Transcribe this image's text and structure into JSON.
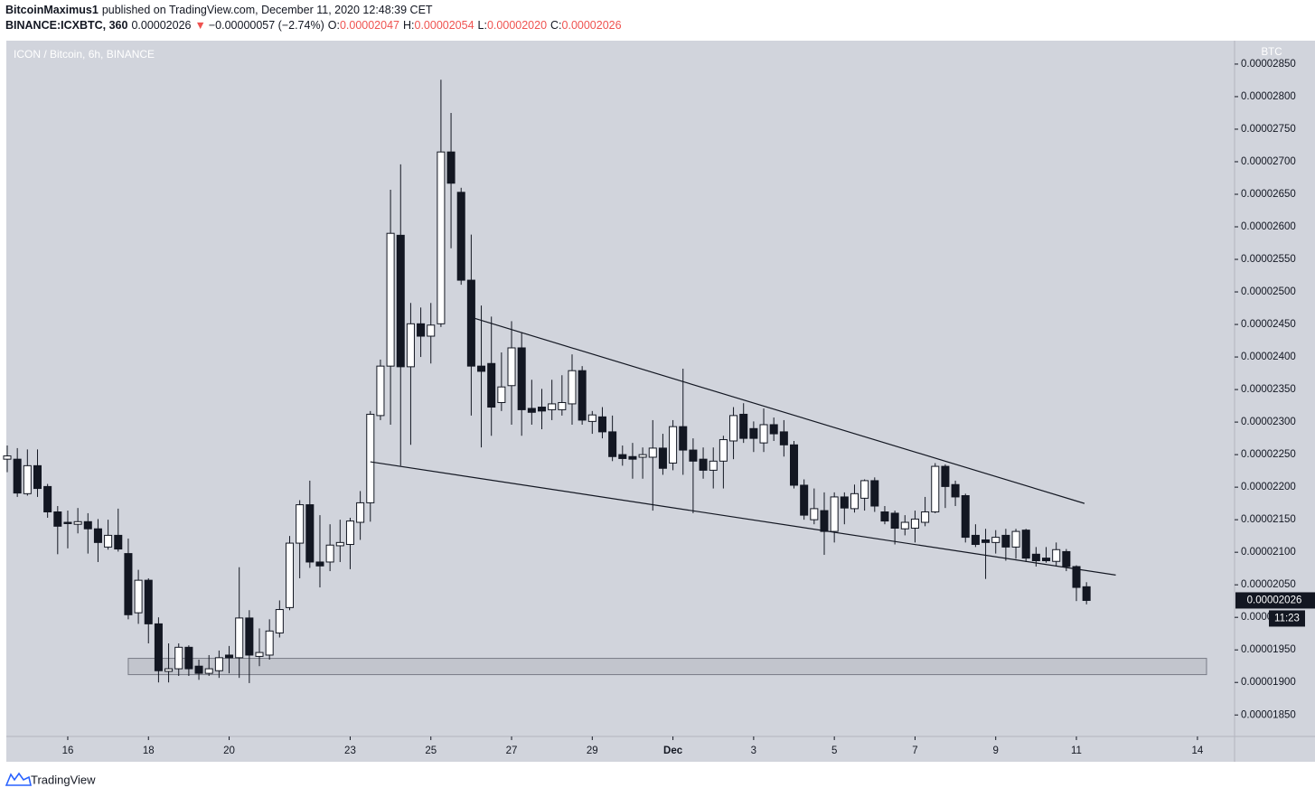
{
  "header": {
    "author": "BitcoinMaximus1",
    "published": "published on TradingView.com, December 11, 2020 12:48:39 CET",
    "symbol": "BINANCE:ICXBTC, 360",
    "price": "0.00002026",
    "arrow": "▼",
    "change": "−0.00000057 (−2.74%)",
    "ohlc": [
      {
        "label": "O:",
        "value": "0.00002047"
      },
      {
        "label": "H:",
        "value": "0.00002054"
      },
      {
        "label": "L:",
        "value": "0.00002020"
      },
      {
        "label": "C:",
        "value": "0.00002026"
      }
    ]
  },
  "footer": {
    "brand": "TradingView"
  },
  "chart_data": {
    "type": "candlestick",
    "title": "ICON / Bitcoin, 6h, BINANCE",
    "y_unit": "BTC",
    "up_color": "#ffffff",
    "down_color": "#131722",
    "grid": false,
    "candles": {
      "open": [
        2.243e-05,
        2.243e-05,
        2.19e-05,
        2.233e-05,
        2.201e-05,
        2.162e-05,
        2.146e-05,
        2.143e-05,
        2.147e-05,
        2.136e-05,
        2.108e-05,
        2.126e-05,
        2.098e-05,
        2.007e-05,
        2.057e-05,
        1.99e-05,
        1.917e-05,
        1.921e-05,
        1.954e-05,
        1.925e-05,
        1.914e-05,
        1.918e-05,
        1.942e-05,
        1.938e-05,
        1.999e-05,
        1.94e-05,
        1.942e-05,
        1.976e-05,
        2.015e-05,
        2.114e-05,
        2.173e-05,
        2.085e-05,
        2.085e-05,
        2.11e-05,
        2.112e-05,
        2.146e-05,
        2.176e-05,
        2.31e-05,
        2.386e-05,
        2.587e-05,
        2.385e-05,
        2.451e-05,
        2.432e-05,
        2.451e-05,
        2.715e-05,
        2.653e-05,
        2.518e-05,
        2.386e-05,
        2.39e-05,
        2.33e-05,
        2.356e-05,
        2.414e-05,
        2.321e-05,
        2.323e-05,
        2.319e-05,
        2.319e-05,
        2.328e-05,
        2.379e-05,
        2.301e-05,
        2.308e-05,
        2.285e-05,
        2.25e-05,
        2.247e-05,
        2.246e-05,
        2.246e-05,
        2.26e-05,
        2.237e-05,
        2.293e-05,
        2.257e-05,
        2.243e-05,
        2.226e-05,
        2.24e-05,
        2.271e-05,
        2.312e-05,
        2.29e-05,
        2.268e-05,
        2.296e-05,
        2.285e-05,
        2.265e-05,
        2.203e-05,
        2.15e-05,
        2.164e-05,
        2.132e-05,
        2.185e-05,
        2.167e-05,
        2.183e-05,
        2.21e-05,
        2.162e-05,
        2.16e-05,
        2.136e-05,
        2.137e-05,
        2.146e-05,
        2.162e-05,
        2.232e-05,
        2.204e-05,
        2.187e-05,
        2.126e-05,
        2.119e-05,
        2.115e-05,
        2.126e-05,
        2.108e-05,
        2.134e-05,
        2.097e-05,
        2.091e-05,
        2.086e-05,
        2.101e-05,
        2.078e-05,
        2.047e-05
      ],
      "high": [
        2.264e-05,
        2.26e-05,
        2.258e-05,
        2.258e-05,
        2.205e-05,
        2.171e-05,
        2.164e-05,
        2.168e-05,
        2.16e-05,
        2.151e-05,
        2.15e-05,
        2.167e-05,
        2.121e-05,
        2.073e-05,
        2.06e-05,
        2e-05,
        1.96e-05,
        1.96e-05,
        1.957e-05,
        1.935e-05,
        1.942e-05,
        1.949e-05,
        1.956e-05,
        2.077e-05,
        2.011e-05,
        1.983e-05,
        1.997e-05,
        2.026e-05,
        2.125e-05,
        2.18e-05,
        2.21e-05,
        2.157e-05,
        2.143e-05,
        2.15e-05,
        2.153e-05,
        2.194e-05,
        2.317e-05,
        2.396e-05,
        2.657e-05,
        2.696e-05,
        2.483e-05,
        2.476e-05,
        2.483e-05,
        2.826e-05,
        2.775e-05,
        2.66e-05,
        2.588e-05,
        2.479e-05,
        2.462e-05,
        2.407e-05,
        2.455e-05,
        2.437e-05,
        2.365e-05,
        2.351e-05,
        2.365e-05,
        2.372e-05,
        2.404e-05,
        2.386e-05,
        2.317e-05,
        2.323e-05,
        2.31e-05,
        2.264e-05,
        2.268e-05,
        2.261e-05,
        2.303e-05,
        2.282e-05,
        2.303e-05,
        2.382e-05,
        2.275e-05,
        2.261e-05,
        2.261e-05,
        2.279e-05,
        2.323e-05,
        2.329e-05,
        2.301e-05,
        2.321e-05,
        2.307e-05,
        2.303e-05,
        2.271e-05,
        2.212e-05,
        2.198e-05,
        2.192e-05,
        2.192e-05,
        2.192e-05,
        2.204e-05,
        2.212e-05,
        2.215e-05,
        2.171e-05,
        2.164e-05,
        2.157e-05,
        2.164e-05,
        2.185e-05,
        2.237e-05,
        2.235e-05,
        2.21e-05,
        2.19e-05,
        2.143e-05,
        2.136e-05,
        2.134e-05,
        2.136e-05,
        2.136e-05,
        2.136e-05,
        2.108e-05,
        2.108e-05,
        2.115e-05,
        2.105e-05,
        2.08e-05,
        2.054e-05
      ],
      "low": [
        2.223e-05,
        2.185e-05,
        2.187e-05,
        2.185e-05,
        2.153e-05,
        2.097e-05,
        2.106e-05,
        2.129e-05,
        2.098e-05,
        2.085e-05,
        2.104e-05,
        2.101e-05,
        1.997e-05,
        1.99e-05,
        1.96e-05,
        1.9e-05,
        1.9e-05,
        1.91e-05,
        1.91e-05,
        1.904e-05,
        1.91e-05,
        1.907e-05,
        1.914e-05,
        1.907e-05,
        1.899e-05,
        1.925e-05,
        1.935e-05,
        1.969e-05,
        2.011e-05,
        2.06e-05,
        2.076e-05,
        2.046e-05,
        2.071e-05,
        2.085e-05,
        2.074e-05,
        2.119e-05,
        2.147e-05,
        2.303e-05,
        2.296e-05,
        2.233e-05,
        2.265e-05,
        2.4e-05,
        2.39e-05,
        2.446e-05,
        2.567e-05,
        2.511e-05,
        2.31e-05,
        2.261e-05,
        2.279e-05,
        2.317e-05,
        2.296e-05,
        2.279e-05,
        2.296e-05,
        2.289e-05,
        2.303e-05,
        2.31e-05,
        2.296e-05,
        2.296e-05,
        2.282e-05,
        2.275e-05,
        2.24e-05,
        2.233e-05,
        2.213e-05,
        2.213e-05,
        2.164e-05,
        2.219e-05,
        2.226e-05,
        2.219e-05,
        2.16e-05,
        2.213e-05,
        2.198e-05,
        2.198e-05,
        2.243e-05,
        2.268e-05,
        2.254e-05,
        2.254e-05,
        2.271e-05,
        2.247e-05,
        2.198e-05,
        2.15e-05,
        2.143e-05,
        2.096e-05,
        2.115e-05,
        2.143e-05,
        2.161e-05,
        2.164e-05,
        2.162e-05,
        2.143e-05,
        2.112e-05,
        2.126e-05,
        2.115e-05,
        2.14e-05,
        2.16e-05,
        2.168e-05,
        2.171e-05,
        2.115e-05,
        2.108e-05,
        2.059e-05,
        2.098e-05,
        2.087e-05,
        2.09e-05,
        2.085e-05,
        2.078e-05,
        2.084e-05,
        2.078e-05,
        2.071e-05,
        2.025e-05,
        2.02e-05
      ],
      "close": [
        2.248e-05,
        2.191e-05,
        2.233e-05,
        2.198e-05,
        2.162e-05,
        2.14e-05,
        2.144e-05,
        2.147e-05,
        2.136e-05,
        2.115e-05,
        2.126e-05,
        2.105e-05,
        2.004e-05,
        2.057e-05,
        1.99e-05,
        1.918e-05,
        1.921e-05,
        1.954e-05,
        1.921e-05,
        1.914e-05,
        1.921e-05,
        1.938e-05,
        1.938e-05,
        1.999e-05,
        1.942e-05,
        1.946e-05,
        1.979e-05,
        2.012e-05,
        2.114e-05,
        2.173e-05,
        2.085e-05,
        2.079e-05,
        2.111e-05,
        2.115e-05,
        2.148e-05,
        2.176e-05,
        2.312e-05,
        2.386e-05,
        2.59e-05,
        2.385e-05,
        2.451e-05,
        2.432e-05,
        2.449e-05,
        2.715e-05,
        2.667e-05,
        2.518e-05,
        2.386e-05,
        2.378e-05,
        2.323e-05,
        2.354e-05,
        2.414e-05,
        2.319e-05,
        2.315e-05,
        2.317e-05,
        2.328e-05,
        2.33e-05,
        2.379e-05,
        2.303e-05,
        2.311e-05,
        2.285e-05,
        2.247e-05,
        2.244e-05,
        2.243e-05,
        2.25e-05,
        2.26e-05,
        2.229e-05,
        2.293e-05,
        2.257e-05,
        2.24e-05,
        2.226e-05,
        2.24e-05,
        2.273e-05,
        2.31e-05,
        2.275e-05,
        2.275e-05,
        2.296e-05,
        2.282e-05,
        2.265e-05,
        2.203e-05,
        2.157e-05,
        2.167e-05,
        2.132e-05,
        2.185e-05,
        2.168e-05,
        2.19e-05,
        2.21e-05,
        2.171e-05,
        2.148e-05,
        2.137e-05,
        2.146e-05,
        2.151e-05,
        2.162e-05,
        2.232e-05,
        2.201e-05,
        2.185e-05,
        2.123e-05,
        2.112e-05,
        2.115e-05,
        2.123e-05,
        2.108e-05,
        2.132e-05,
        2.091e-05,
        2.087e-05,
        2.087e-05,
        2.104e-05,
        2.078e-05,
        2.046e-05,
        2.026e-05
      ]
    },
    "xlim": [
      -0.09,
      121.68
    ],
    "xticks": [
      {
        "value": 6,
        "label": "16"
      },
      {
        "value": 14,
        "label": "18"
      },
      {
        "value": 22,
        "label": "20"
      },
      {
        "value": 34,
        "label": "23"
      },
      {
        "value": 42,
        "label": "25"
      },
      {
        "value": 50,
        "label": "27"
      },
      {
        "value": 58,
        "label": "29"
      },
      {
        "value": 66,
        "label": "Dec"
      },
      {
        "value": 74,
        "label": "3"
      },
      {
        "value": 82,
        "label": "5"
      },
      {
        "value": 90,
        "label": "7"
      },
      {
        "value": 98,
        "label": "9"
      },
      {
        "value": 106,
        "label": "11"
      },
      {
        "value": 118,
        "label": "14"
      }
    ],
    "ylim": [
      1.817e-05,
      2.886e-05
    ],
    "yticks": [
      {
        "value": 1.85e-05,
        "label": "0.00001850"
      },
      {
        "value": 1.9e-05,
        "label": "0.00001900"
      },
      {
        "value": 1.95e-05,
        "label": "0.00001950"
      },
      {
        "value": 2e-05,
        "label": "0.00002000"
      },
      {
        "value": 2.05e-05,
        "label": "0.00002050"
      },
      {
        "value": 2.1e-05,
        "label": "0.00002100"
      },
      {
        "value": 2.15e-05,
        "label": "0.00002150"
      },
      {
        "value": 2.2e-05,
        "label": "0.00002200"
      },
      {
        "value": 2.25e-05,
        "label": "0.00002250"
      },
      {
        "value": 2.3e-05,
        "label": "0.00002300"
      },
      {
        "value": 2.35e-05,
        "label": "0.00002350"
      },
      {
        "value": 2.4e-05,
        "label": "0.00002400"
      },
      {
        "value": 2.45e-05,
        "label": "0.00002450"
      },
      {
        "value": 2.5e-05,
        "label": "0.00002500"
      },
      {
        "value": 2.55e-05,
        "label": "0.00002550"
      },
      {
        "value": 2.6e-05,
        "label": "0.00002600"
      },
      {
        "value": 2.65e-05,
        "label": "0.00002650"
      },
      {
        "value": 2.7e-05,
        "label": "0.00002700"
      },
      {
        "value": 2.75e-05,
        "label": "0.00002750"
      },
      {
        "value": 2.8e-05,
        "label": "0.00002800"
      },
      {
        "value": 2.85e-05,
        "label": "0.00002850"
      }
    ],
    "current_price": {
      "value": 2.026e-05,
      "label": "0.00002026"
    },
    "countdown": "11:23",
    "trendlines": [
      {
        "x": [
          46.2,
          106.8
        ],
        "y": [
          2.46e-05,
          2.175e-05
        ]
      },
      {
        "x": [
          36,
          109.9
        ],
        "y": [
          2.239e-05,
          2.065e-05
        ]
      }
    ],
    "zone": {
      "x": [
        12,
        118.9
      ],
      "y": [
        1.912e-05,
        1.937e-05
      ]
    }
  }
}
